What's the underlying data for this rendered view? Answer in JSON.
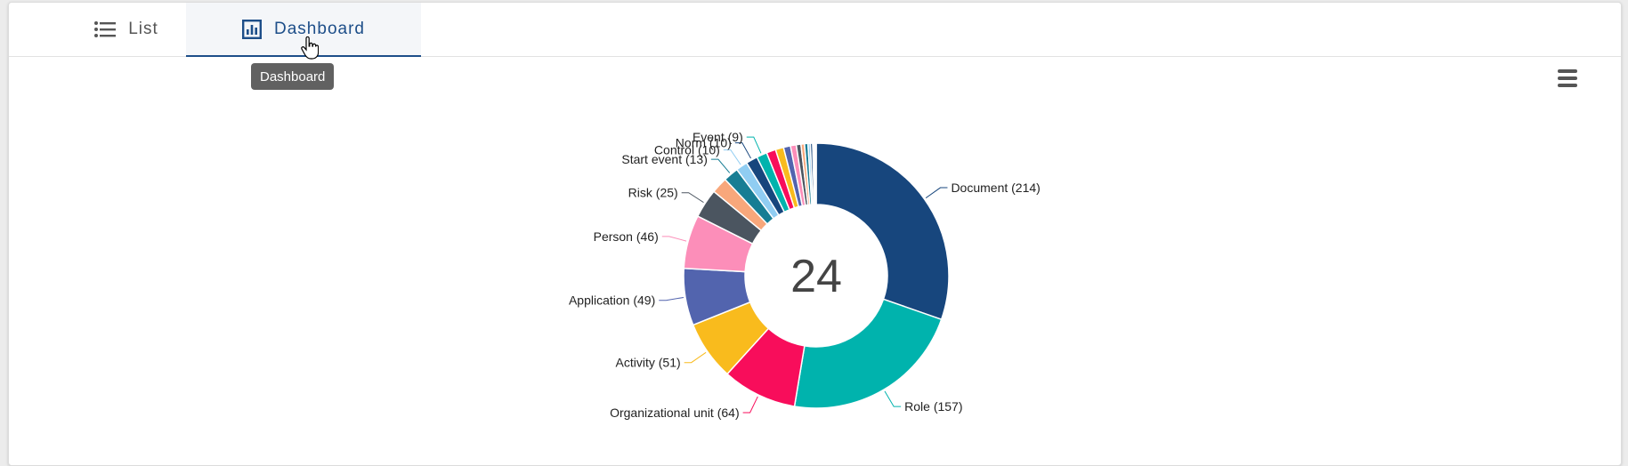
{
  "tabs": [
    {
      "label": "List",
      "icon": "list-icon"
    },
    {
      "label": "Dashboard",
      "icon": "chart-icon",
      "active": true
    }
  ],
  "tooltip": "Dashboard",
  "menu_icon": "hamburger-menu-icon",
  "chart_data": {
    "type": "pie",
    "variant": "donut",
    "center_label": "24",
    "slices": [
      {
        "label": "Document (214)",
        "value": 214,
        "color": "#17467d",
        "show_label": true
      },
      {
        "label": "Role (157)",
        "value": 157,
        "color": "#00b3ad",
        "show_label": true
      },
      {
        "label": "Organizational unit (64)",
        "value": 64,
        "color": "#f80d5b",
        "show_label": true
      },
      {
        "label": "Activity (51)",
        "value": 51,
        "color": "#f9bb1d",
        "show_label": true
      },
      {
        "label": "Application (49)",
        "value": 49,
        "color": "#5264ae",
        "show_label": true
      },
      {
        "label": "Person (46)",
        "value": 46,
        "color": "#fc8eb9",
        "show_label": true
      },
      {
        "label": "Risk (25)",
        "value": 25,
        "color": "#4b5560",
        "show_label": true
      },
      {
        "label": "",
        "value": 14,
        "color": "#f8a77b",
        "show_label": false
      },
      {
        "label": "Start event (13)",
        "value": 13,
        "color": "#177d94",
        "show_label": true
      },
      {
        "label": "Control (10)",
        "value": 10,
        "color": "#90cdf2",
        "show_label": true
      },
      {
        "label": "Norm (10)",
        "value": 10,
        "color": "#17467d",
        "show_label": true
      },
      {
        "label": "Event (9)",
        "value": 9,
        "color": "#00b3ad",
        "show_label": true
      },
      {
        "label": "",
        "value": 8,
        "color": "#f80d5b",
        "show_label": false
      },
      {
        "label": "",
        "value": 7,
        "color": "#f9bb1d",
        "show_label": false
      },
      {
        "label": "",
        "value": 6,
        "color": "#5264ae",
        "show_label": false
      },
      {
        "label": "",
        "value": 5,
        "color": "#fc8eb9",
        "show_label": false
      },
      {
        "label": "",
        "value": 4,
        "color": "#4b5560",
        "show_label": false
      },
      {
        "label": "",
        "value": 3,
        "color": "#f8a77b",
        "show_label": false
      },
      {
        "label": "",
        "value": 3,
        "color": "#177d94",
        "show_label": false
      },
      {
        "label": "",
        "value": 2,
        "color": "#90cdf2",
        "show_label": false
      },
      {
        "label": "",
        "value": 2,
        "color": "#17467d",
        "show_label": false
      },
      {
        "label": "",
        "value": 1,
        "color": "#00b3ad",
        "show_label": false
      },
      {
        "label": "",
        "value": 1,
        "color": "#f80d5b",
        "show_label": false
      },
      {
        "label": "",
        "value": 1,
        "color": "#f9bb1d",
        "show_label": false
      }
    ]
  }
}
